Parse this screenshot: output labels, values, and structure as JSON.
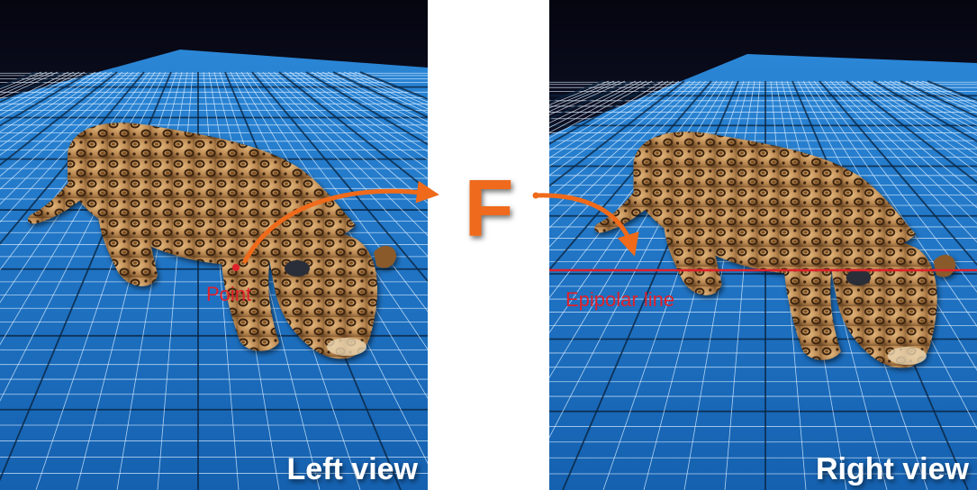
{
  "left_panel": {
    "label": "Left view",
    "point_label": "Point"
  },
  "right_panel": {
    "label": "Right view",
    "epipolar_label": "Epipolar line"
  },
  "center": {
    "symbol": "F"
  },
  "colors": {
    "floor": "#1a6fc0",
    "floor_dark": "#0b3f7a",
    "sky_top": "#050510",
    "sky_bottom": "#1f2a52",
    "grid_minor": "#d8ecff",
    "grid_major": "#0a2440",
    "accent_orange": "#ef6a1a",
    "annotation_red": "#e0202a",
    "label_white": "#ffffff"
  },
  "icons": {
    "subject": "leopard-model",
    "arrow": "curved-arrow"
  }
}
